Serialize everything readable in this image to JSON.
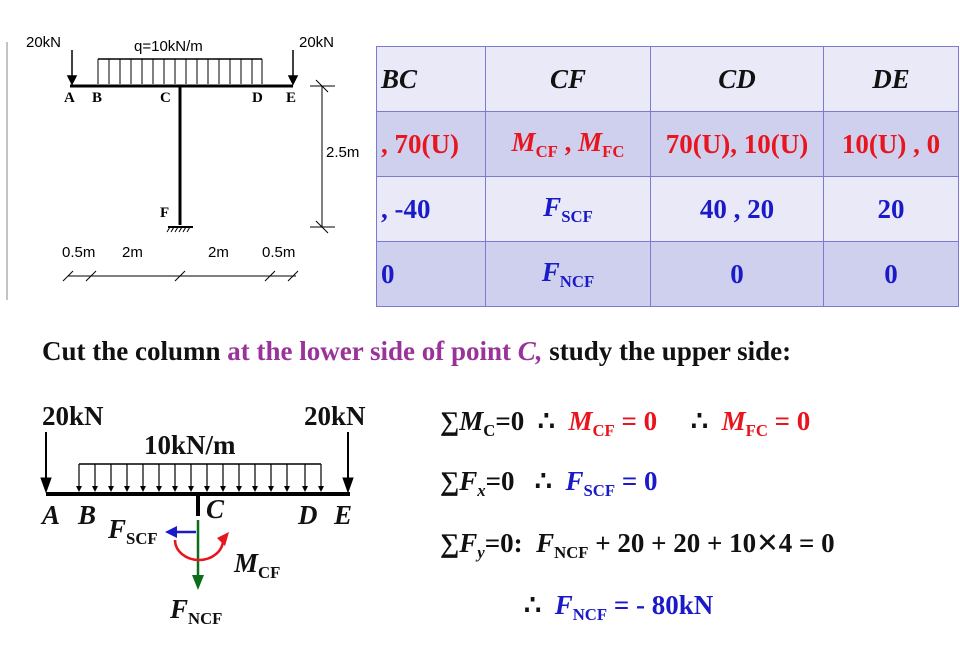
{
  "frame_diagram": {
    "load_left": "20kN",
    "load_right": "20kN",
    "distributed": "q=10kN/m",
    "points": [
      "A",
      "B",
      "C",
      "D",
      "E",
      "F"
    ],
    "height": "2.5m",
    "dims": [
      "0.5m",
      "2m",
      "2m",
      "0.5m"
    ]
  },
  "table": {
    "headers": [
      "BC",
      "CF",
      "CD",
      "DE"
    ],
    "rows": [
      {
        "bc": ", 70(U)",
        "cf_m1": "M",
        "cf_s1": "CF",
        "cf_sep": " , ",
        "cf_m2": "M",
        "cf_s2": "FC",
        "cd": "70(U), 10(U)",
        "de": "10(U) , 0"
      },
      {
        "bc": ",  -40",
        "cf_m1": "F",
        "cf_s1": "SCF",
        "cd": "40 ,  20",
        "de": "20"
      },
      {
        "bc": "0",
        "cf_m1": "F",
        "cf_s1": "NCF",
        "cd": "0",
        "de": "0"
      }
    ]
  },
  "title": {
    "part1": "Cut the column ",
    "part2": "at the lower side of point ",
    "part3": "C,",
    "part4": " study the upper side:"
  },
  "free_body": {
    "load_left": "20kN",
    "load_right": "20kN",
    "distributed": "10kN/m",
    "labels": [
      "A",
      "B",
      "C",
      "D",
      "E"
    ],
    "shear": {
      "f": "F",
      "sub": "SCF"
    },
    "moment": {
      "m": "M",
      "sub": "CF"
    },
    "normal": {
      "f": "F",
      "sub": "NCF"
    }
  },
  "equations": {
    "e1": {
      "lhs_sym": "∑M",
      "lhs_sub": "C",
      "lhs_eq": "=0",
      "therefore1": "∴",
      "r1_m": "M",
      "r1_sub": "CF",
      "r1_val": " = 0",
      "therefore2": "∴",
      "r2_m": "M",
      "r2_sub": "FC",
      "r2_val": " = 0"
    },
    "e2": {
      "lhs_sym": "∑F",
      "lhs_sub": "x",
      "lhs_eq": "=0",
      "therefore": "∴",
      "r_f": "F",
      "r_sub": "SCF",
      "r_val": " = 0"
    },
    "e3": {
      "lhs_sym": "∑F",
      "lhs_sub": "y",
      "lhs_eq": "=0:",
      "f": "F",
      "sub": "NCF",
      "rest": " + 20 + 20 + 10",
      "times": "✕",
      "tail": "4 = 0"
    },
    "e4": {
      "therefore": "∴",
      "f": "F",
      "sub": "NCF",
      "val": " =  - 80kN"
    }
  }
}
